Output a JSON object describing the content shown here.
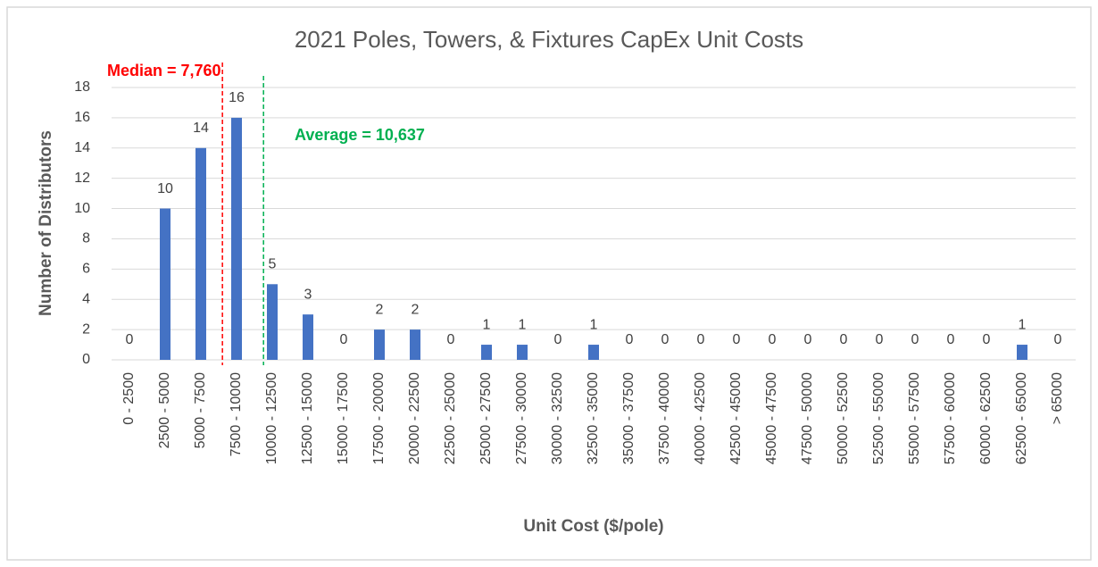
{
  "chart_data": {
    "type": "bar",
    "title": "2021 Poles, Towers, & Fixtures CapEx Unit Costs",
    "x_label": "Unit Cost ($/pole)",
    "y_label": "Number of Distributors",
    "categories": [
      "0 - 2500",
      "2500 - 5000",
      "5000 - 7500",
      "7500 - 10000",
      "10000 - 12500",
      "12500 - 15000",
      "15000 - 17500",
      "17500 - 20000",
      "20000 - 22500",
      "22500 - 25000",
      "25000 - 27500",
      "27500 - 30000",
      "30000 - 32500",
      "32500 - 35000",
      "35000 - 37500",
      "37500 - 40000",
      "40000 - 42500",
      "42500 - 45000",
      "45000 - 47500",
      "47500 - 50000",
      "50000 - 52500",
      "52500 - 55000",
      "55000 - 57500",
      "57500 - 60000",
      "60000 - 62500",
      "62500 - 65000",
      "> 65000"
    ],
    "values": [
      0,
      10,
      14,
      16,
      5,
      3,
      0,
      2,
      2,
      0,
      1,
      1,
      0,
      1,
      0,
      0,
      0,
      0,
      0,
      0,
      0,
      0,
      0,
      0,
      0,
      1,
      0
    ],
    "color": "#4472c4",
    "ylim": [
      0,
      18
    ],
    "yticks": [
      0,
      2,
      4,
      6,
      8,
      10,
      12,
      14,
      16,
      18
    ],
    "grid": true,
    "annotations": [
      {
        "label": "Median = 7,760",
        "value": 7760,
        "color": "#ff0000"
      },
      {
        "label": "Average = 10,637",
        "value": 10637,
        "color": "#00b050"
      }
    ]
  }
}
